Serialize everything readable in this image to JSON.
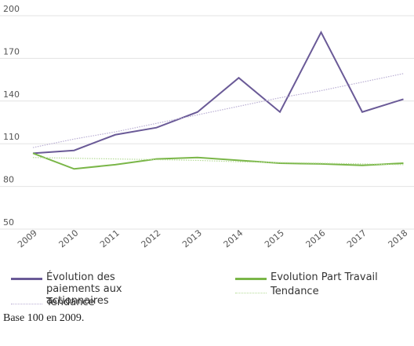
{
  "chart_data": {
    "type": "line",
    "categories": [
      "2009",
      "2010",
      "2011",
      "2012",
      "2013",
      "2014",
      "2015",
      "2016",
      "2017",
      "2018"
    ],
    "series": [
      {
        "name": "Évolution des paiements aux actionnaires",
        "color": "#6a5a97",
        "style": "solid",
        "values": [
          100,
          102,
          113,
          118,
          129,
          153,
          129,
          185,
          129,
          138
        ]
      },
      {
        "name": "Tendance",
        "color": "#b9aed3",
        "style": "dotted",
        "values": [
          104,
          110,
          115,
          121,
          127,
          133,
          139,
          144,
          150,
          156
        ]
      },
      {
        "name": "Evolution Part Travail",
        "color": "#7ab648",
        "style": "solid",
        "values": [
          100,
          89,
          92,
          96,
          97,
          95,
          93,
          92.5,
          91.5,
          93
        ]
      },
      {
        "name": "Tendance",
        "color": "#b5db97",
        "style": "dotted",
        "values": [
          97,
          96.5,
          96,
          95.5,
          95,
          94,
          93.5,
          93,
          92.5,
          92
        ]
      }
    ],
    "ylim": [
      50,
      200
    ],
    "yticks": [
      50,
      80,
      110,
      140,
      170,
      200
    ],
    "grid": true,
    "legend": "bottom",
    "note": "Base 100 en 2009."
  }
}
